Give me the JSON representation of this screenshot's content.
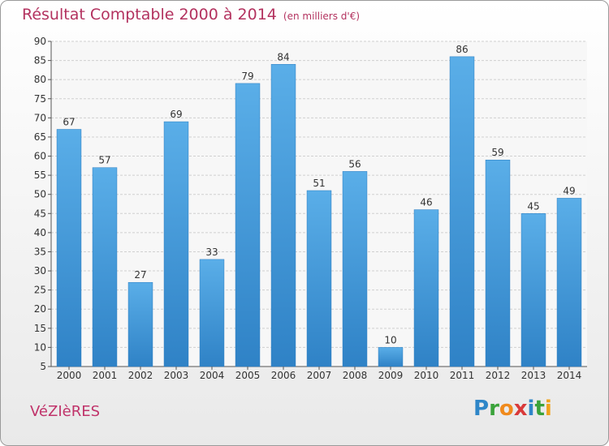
{
  "title": "Résultat Comptable 2000 à 2014",
  "subtitle": "(en milliers d'€)",
  "location": "VéZIèRES",
  "logo": {
    "text": "Proxiti",
    "letters": [
      {
        "ch": "P",
        "color": "#2f86c8"
      },
      {
        "ch": "r",
        "color": "#3aa23a"
      },
      {
        "ch": "o",
        "color": "#f08a1c"
      },
      {
        "ch": "x",
        "color": "#d93a3a"
      },
      {
        "ch": "i",
        "color": "#2f86c8"
      },
      {
        "ch": "t",
        "color": "#3aa23a"
      },
      {
        "ch": "i",
        "color": "#f0a21c"
      }
    ]
  },
  "colors": {
    "title": "#b3325f",
    "bar": "#4ea3e0",
    "bar_edge": "#2a7cc0",
    "grid": "#d0d0d0"
  },
  "chart_data": {
    "type": "bar",
    "categories": [
      "2000",
      "2001",
      "2002",
      "2003",
      "2004",
      "2005",
      "2006",
      "2007",
      "2008",
      "2009",
      "2010",
      "2011",
      "2012",
      "2013",
      "2014"
    ],
    "values": [
      67,
      57,
      27,
      69,
      33,
      79,
      84,
      51,
      56,
      10,
      46,
      86,
      59,
      45,
      49
    ],
    "title": "Résultat Comptable 2000 à 2014",
    "subtitle": "(en milliers d'€)",
    "xlabel": "",
    "ylabel": "",
    "ylim": [
      5,
      90
    ],
    "yticks": [
      5,
      10,
      15,
      20,
      25,
      30,
      35,
      40,
      45,
      50,
      55,
      60,
      65,
      70,
      75,
      80,
      85,
      90
    ],
    "grid": true,
    "legend": "none"
  }
}
